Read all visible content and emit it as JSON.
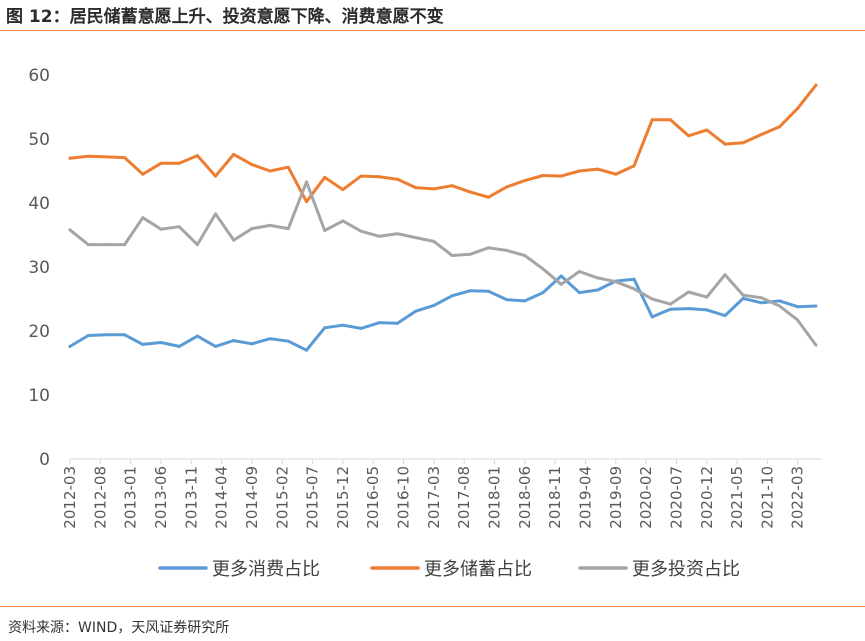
{
  "header": {
    "title": "图 12：居民储蓄意愿上升、投资意愿下降、消费意愿不变"
  },
  "footer": {
    "source": "资料来源：WIND，天风证券研究所"
  },
  "chart_data": {
    "type": "line",
    "title": "图 12：居民储蓄意愿上升、投资意愿下降、消费意愿不变",
    "xlabel": "",
    "ylabel": "",
    "ylim": [
      0,
      60
    ],
    "yticks": [
      "0",
      "10",
      "20",
      "30",
      "40",
      "50",
      "60"
    ],
    "grid": false,
    "legend": "bottom",
    "xtick_labels": [
      "2012-03",
      "2012-08",
      "2013-01",
      "2013-06",
      "2013-11",
      "2014-04",
      "2014-09",
      "2015-02",
      "2015-07",
      "2015-12",
      "2016-05",
      "2016-10",
      "2017-03",
      "2017-08",
      "2018-01",
      "2018-06",
      "2018-11",
      "2019-04",
      "2019-09",
      "2020-02",
      "2020-07",
      "2020-12",
      "2021-05",
      "2021-10",
      "2022-03"
    ],
    "x": [
      "2012-03",
      "2012-06",
      "2012-09",
      "2012-12",
      "2013-03",
      "2013-06",
      "2013-09",
      "2013-12",
      "2014-03",
      "2014-06",
      "2014-09",
      "2014-12",
      "2015-03",
      "2015-06",
      "2015-09",
      "2015-12",
      "2016-03",
      "2016-06",
      "2016-09",
      "2016-12",
      "2017-03",
      "2017-06",
      "2017-09",
      "2017-12",
      "2018-03",
      "2018-06",
      "2018-09",
      "2018-12",
      "2019-03",
      "2019-06",
      "2019-09",
      "2019-12",
      "2020-03",
      "2020-06",
      "2020-09",
      "2020-12",
      "2021-03",
      "2021-06",
      "2021-09",
      "2021-12",
      "2022-03",
      "2022-06"
    ],
    "series": [
      {
        "name": "更多消费占比",
        "color": "#5b9bd5",
        "values": [
          17.6,
          19.3,
          19.4,
          19.4,
          17.9,
          18.2,
          17.6,
          19.2,
          17.6,
          18.5,
          18.0,
          18.8,
          18.4,
          17.0,
          20.5,
          20.9,
          20.4,
          21.3,
          21.2,
          23.1,
          24.0,
          25.5,
          26.3,
          26.2,
          24.9,
          24.7,
          26.0,
          28.6,
          26.0,
          26.4,
          27.8,
          28.1,
          22.2,
          23.4,
          23.5,
          23.3,
          22.4,
          25.1,
          24.4,
          24.7,
          23.8,
          23.9
        ]
      },
      {
        "name": "更多储蓄占比",
        "color": "#ed7d31",
        "values": [
          47.0,
          47.3,
          47.2,
          47.1,
          44.5,
          46.2,
          46.2,
          47.4,
          44.2,
          47.6,
          46.0,
          45.0,
          45.6,
          40.2,
          44.0,
          42.1,
          44.2,
          44.1,
          43.7,
          42.4,
          42.2,
          42.7,
          41.7,
          40.9,
          42.5,
          43.5,
          44.3,
          44.2,
          45.0,
          45.3,
          44.5,
          45.8,
          53.0,
          53.0,
          50.5,
          51.4,
          49.2,
          49.4,
          50.7,
          51.9,
          54.8,
          58.4
        ]
      },
      {
        "name": "更多投资占比",
        "color": "#a5a5a5",
        "values": [
          35.8,
          33.5,
          33.5,
          33.5,
          37.7,
          35.9,
          36.3,
          33.5,
          38.3,
          34.2,
          36.0,
          36.5,
          36.0,
          43.3,
          35.7,
          37.2,
          35.6,
          34.8,
          35.2,
          34.6,
          34.0,
          31.8,
          32.0,
          33.0,
          32.6,
          31.8,
          29.7,
          27.3,
          29.3,
          28.3,
          27.7,
          26.6,
          25.0,
          24.2,
          26.1,
          25.3,
          28.8,
          25.6,
          25.2,
          23.9,
          21.7,
          17.8
        ]
      }
    ]
  }
}
